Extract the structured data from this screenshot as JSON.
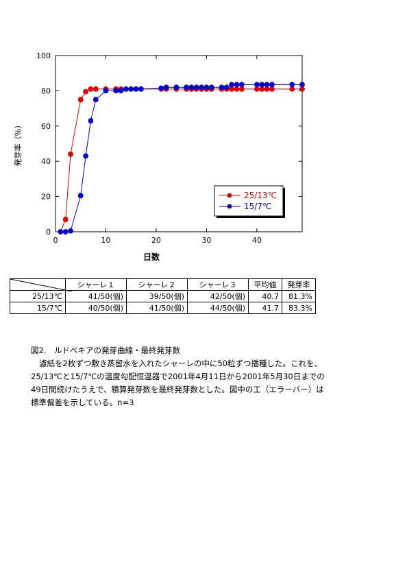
{
  "chart_data": {
    "type": "line",
    "xlabel": "日数",
    "ylabel": "発芽率（％）",
    "xlim": [
      0,
      49
    ],
    "ylim": [
      0,
      100
    ],
    "xticks": [
      0,
      10,
      20,
      30,
      40
    ],
    "yticks": [
      0,
      20,
      40,
      60,
      80,
      100
    ],
    "legend_position": "lower-right",
    "series": [
      {
        "name": "25/13℃",
        "color": "#dd0000",
        "x": [
          1,
          2,
          3,
          5,
          6,
          7,
          8,
          10,
          12,
          13,
          14,
          15,
          16,
          17,
          21,
          22,
          24,
          26,
          27,
          28,
          29,
          30,
          31,
          33,
          34,
          35,
          36,
          37,
          40,
          41,
          42,
          43,
          47,
          49
        ],
        "y": [
          0,
          7,
          44,
          75,
          79.5,
          81,
          81,
          81,
          81,
          81,
          81,
          81,
          81,
          81,
          81,
          81,
          81,
          81,
          81,
          81,
          81,
          81,
          81,
          81,
          81,
          81,
          81,
          81,
          81,
          81,
          81,
          81,
          81,
          81
        ]
      },
      {
        "name": "15/7℃",
        "color": "#0000cc",
        "x": [
          1,
          2,
          3,
          5,
          6,
          7,
          8,
          10,
          12,
          13,
          14,
          15,
          16,
          17,
          21,
          22,
          24,
          26,
          27,
          28,
          29,
          30,
          31,
          33,
          34,
          35,
          36,
          37,
          40,
          41,
          42,
          43,
          47,
          49
        ],
        "y": [
          0,
          0,
          0.5,
          20.5,
          43,
          63,
          75,
          80,
          80,
          80,
          81,
          81,
          81,
          81,
          81.5,
          82,
          82,
          82,
          82,
          82,
          82,
          82,
          82,
          82,
          82,
          83.5,
          83.5,
          83.5,
          83.5,
          83.5,
          83.5,
          83.5,
          83.5,
          83.5
        ]
      }
    ]
  },
  "table": {
    "headers": [
      "シャーレ１",
      "シャーレ２",
      "シャーレ３",
      "平均値",
      "発芽率"
    ],
    "rows": [
      {
        "label": "25/13℃",
        "cells": [
          "41/50(個)",
          "39/50(個)",
          "42/50(個)",
          "40.7",
          "81.3%"
        ]
      },
      {
        "label": "15/7℃",
        "cells": [
          "40/50(個)",
          "41/50(個)",
          "44/50(個)",
          "41.7",
          "83.3%"
        ]
      }
    ]
  },
  "caption": {
    "title": "図2.　ルドベキアの発芽曲線・最終発芽数",
    "body": "濾紙を2枚ずつ敷き蒸留水を入れたシャーレの中に50粒ずつ播種した。これを、25/13℃と15/7℃の温度勾配恒温器で2001年4月11日から2001年5月30日までの49日間続けたうえで、積算発芽数を最終発芽数とした。図中の工（エラーバー）は標準偏差を示している。n=3"
  }
}
